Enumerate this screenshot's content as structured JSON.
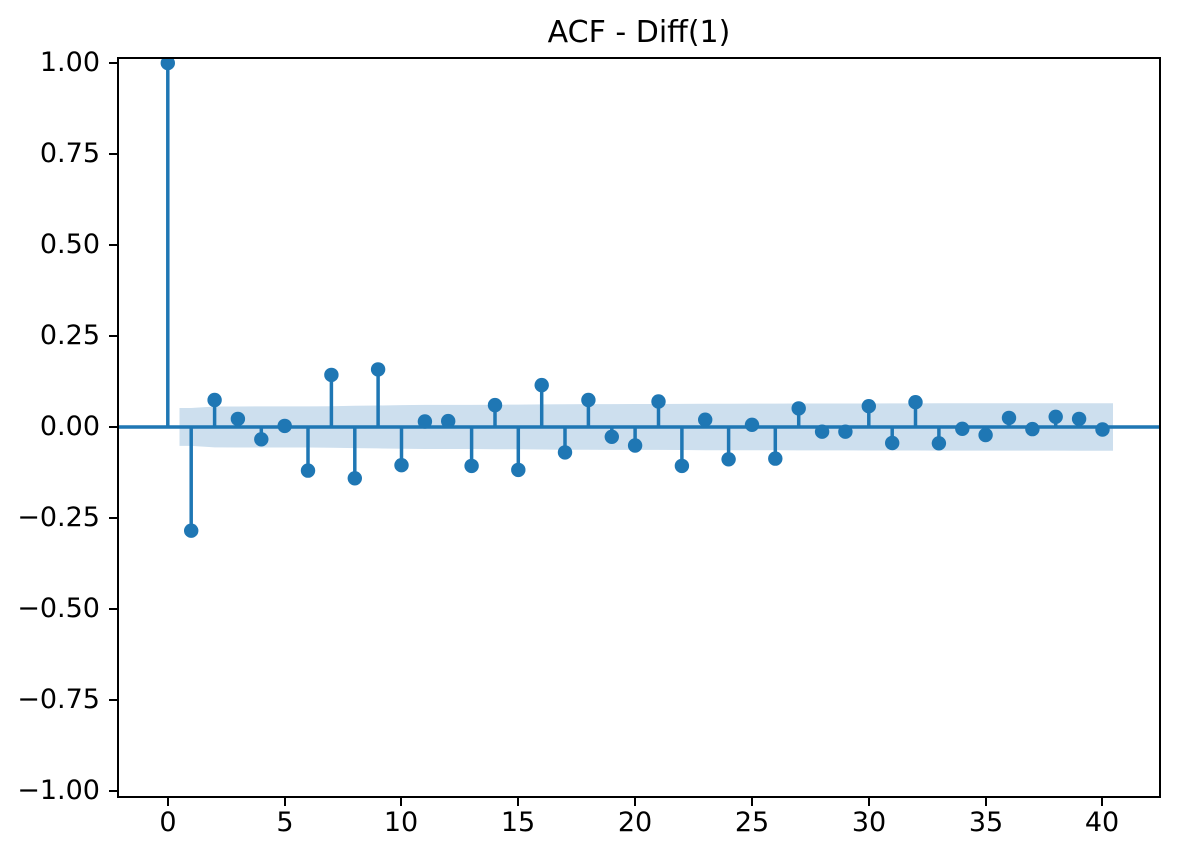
{
  "chart_data": {
    "type": "stem",
    "variant": "autocorrelation-plot",
    "title": "ACF - Diff(1)",
    "xlabel": "",
    "ylabel": "",
    "lags": [
      0,
      1,
      2,
      3,
      4,
      5,
      6,
      7,
      8,
      9,
      10,
      11,
      12,
      13,
      14,
      15,
      16,
      17,
      18,
      19,
      20,
      21,
      22,
      23,
      24,
      25,
      26,
      27,
      28,
      29,
      30,
      31,
      32,
      33,
      34,
      35,
      36,
      37,
      38,
      39,
      40
    ],
    "acf_values": [
      1.0,
      -0.285,
      0.074,
      0.022,
      -0.034,
      0.003,
      -0.12,
      0.143,
      -0.141,
      0.158,
      -0.105,
      0.015,
      0.016,
      -0.107,
      0.06,
      -0.118,
      0.115,
      -0.07,
      0.074,
      -0.027,
      -0.051,
      0.07,
      -0.107,
      0.02,
      -0.089,
      0.006,
      -0.087,
      0.051,
      -0.013,
      -0.013,
      0.057,
      -0.044,
      0.068,
      -0.045,
      -0.005,
      -0.022,
      0.025,
      -0.006,
      0.028,
      0.022,
      -0.007
    ],
    "confidence_band": {
      "method": "bartlett",
      "base_halfwidth": 0.052,
      "halfwidth_at_lag40": 0.065,
      "x_start": 0.5,
      "x_end": 40.45
    },
    "xlim": [
      -2.09,
      42.42
    ],
    "ylim": [
      -1.014,
      1.011
    ],
    "x_ticks": {
      "positions": [
        0,
        5,
        10,
        15,
        20,
        25,
        30,
        35,
        40
      ],
      "labels": [
        "0",
        "5",
        "10",
        "15",
        "20",
        "25",
        "30",
        "35",
        "40"
      ]
    },
    "y_ticks": {
      "positions": [
        1.0,
        0.75,
        0.5,
        0.25,
        0.0,
        -0.25,
        -0.5,
        -0.75,
        -1.0
      ],
      "labels": [
        "1.00",
        "0.75",
        "0.50",
        "0.25",
        "0.00",
        "−0.25",
        "−0.50",
        "−0.75",
        "−1.00"
      ]
    },
    "grid": false,
    "legend": null,
    "colors": {
      "stem": "#1f77b4",
      "marker": "#1f77b4",
      "zero_line": "#1f77b4",
      "confidence_band_fill": "#cddfee",
      "axes_spines": "#000000",
      "tick_text": "#000000",
      "title_text": "#000000",
      "background": "#ffffff"
    }
  }
}
